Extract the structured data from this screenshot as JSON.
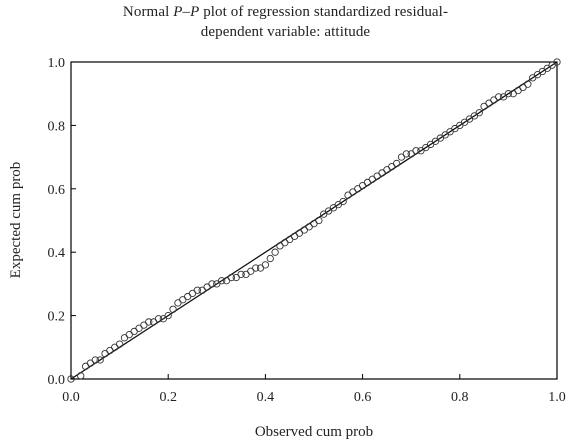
{
  "chart_data": {
    "type": "scatter",
    "title_prefix": "Normal ",
    "title_italic": "P–P",
    "title_rest": " plot of regression standardized residual-",
    "subtitle": "dependent variable: attitude",
    "xlabel": "Observed cum prob",
    "ylabel": "Expected cum prob",
    "xlim": [
      0,
      1
    ],
    "ylim": [
      0,
      1
    ],
    "xticks": [
      "0.0",
      "0.2",
      "0.4",
      "0.6",
      "0.8",
      "1.0"
    ],
    "yticks": [
      "0.0",
      "0.2",
      "0.4",
      "0.6",
      "0.8",
      "1.0"
    ],
    "grid": false,
    "reference_line": [
      [
        0,
        0
      ],
      [
        1,
        1
      ]
    ],
    "points": [
      [
        0.0,
        0.0
      ],
      [
        0.02,
        0.01
      ],
      [
        0.03,
        0.04
      ],
      [
        0.04,
        0.05
      ],
      [
        0.05,
        0.06
      ],
      [
        0.06,
        0.06
      ],
      [
        0.07,
        0.08
      ],
      [
        0.08,
        0.09
      ],
      [
        0.09,
        0.1
      ],
      [
        0.1,
        0.11
      ],
      [
        0.11,
        0.13
      ],
      [
        0.12,
        0.14
      ],
      [
        0.13,
        0.15
      ],
      [
        0.14,
        0.16
      ],
      [
        0.15,
        0.17
      ],
      [
        0.16,
        0.18
      ],
      [
        0.17,
        0.18
      ],
      [
        0.18,
        0.19
      ],
      [
        0.19,
        0.19
      ],
      [
        0.2,
        0.2
      ],
      [
        0.21,
        0.22
      ],
      [
        0.22,
        0.24
      ],
      [
        0.23,
        0.25
      ],
      [
        0.24,
        0.26
      ],
      [
        0.25,
        0.27
      ],
      [
        0.26,
        0.28
      ],
      [
        0.27,
        0.28
      ],
      [
        0.28,
        0.29
      ],
      [
        0.29,
        0.3
      ],
      [
        0.3,
        0.3
      ],
      [
        0.31,
        0.31
      ],
      [
        0.32,
        0.31
      ],
      [
        0.33,
        0.32
      ],
      [
        0.34,
        0.32
      ],
      [
        0.35,
        0.33
      ],
      [
        0.36,
        0.33
      ],
      [
        0.37,
        0.34
      ],
      [
        0.38,
        0.35
      ],
      [
        0.39,
        0.35
      ],
      [
        0.4,
        0.36
      ],
      [
        0.41,
        0.38
      ],
      [
        0.42,
        0.4
      ],
      [
        0.43,
        0.42
      ],
      [
        0.44,
        0.43
      ],
      [
        0.45,
        0.44
      ],
      [
        0.46,
        0.45
      ],
      [
        0.47,
        0.46
      ],
      [
        0.48,
        0.47
      ],
      [
        0.49,
        0.48
      ],
      [
        0.5,
        0.49
      ],
      [
        0.51,
        0.5
      ],
      [
        0.52,
        0.52
      ],
      [
        0.53,
        0.53
      ],
      [
        0.54,
        0.54
      ],
      [
        0.55,
        0.55
      ],
      [
        0.56,
        0.56
      ],
      [
        0.57,
        0.58
      ],
      [
        0.58,
        0.59
      ],
      [
        0.59,
        0.6
      ],
      [
        0.6,
        0.61
      ],
      [
        0.61,
        0.62
      ],
      [
        0.62,
        0.63
      ],
      [
        0.63,
        0.64
      ],
      [
        0.64,
        0.65
      ],
      [
        0.65,
        0.66
      ],
      [
        0.66,
        0.67
      ],
      [
        0.67,
        0.68
      ],
      [
        0.68,
        0.7
      ],
      [
        0.69,
        0.71
      ],
      [
        0.7,
        0.71
      ],
      [
        0.71,
        0.72
      ],
      [
        0.72,
        0.72
      ],
      [
        0.73,
        0.73
      ],
      [
        0.74,
        0.74
      ],
      [
        0.75,
        0.75
      ],
      [
        0.76,
        0.76
      ],
      [
        0.77,
        0.77
      ],
      [
        0.78,
        0.78
      ],
      [
        0.79,
        0.79
      ],
      [
        0.8,
        0.8
      ],
      [
        0.81,
        0.81
      ],
      [
        0.82,
        0.82
      ],
      [
        0.83,
        0.83
      ],
      [
        0.84,
        0.84
      ],
      [
        0.85,
        0.86
      ],
      [
        0.86,
        0.87
      ],
      [
        0.87,
        0.88
      ],
      [
        0.88,
        0.89
      ],
      [
        0.89,
        0.89
      ],
      [
        0.9,
        0.9
      ],
      [
        0.91,
        0.9
      ],
      [
        0.92,
        0.91
      ],
      [
        0.93,
        0.92
      ],
      [
        0.94,
        0.93
      ],
      [
        0.95,
        0.95
      ],
      [
        0.96,
        0.96
      ],
      [
        0.97,
        0.97
      ],
      [
        0.98,
        0.98
      ],
      [
        0.99,
        0.99
      ],
      [
        1.0,
        1.0
      ]
    ]
  }
}
